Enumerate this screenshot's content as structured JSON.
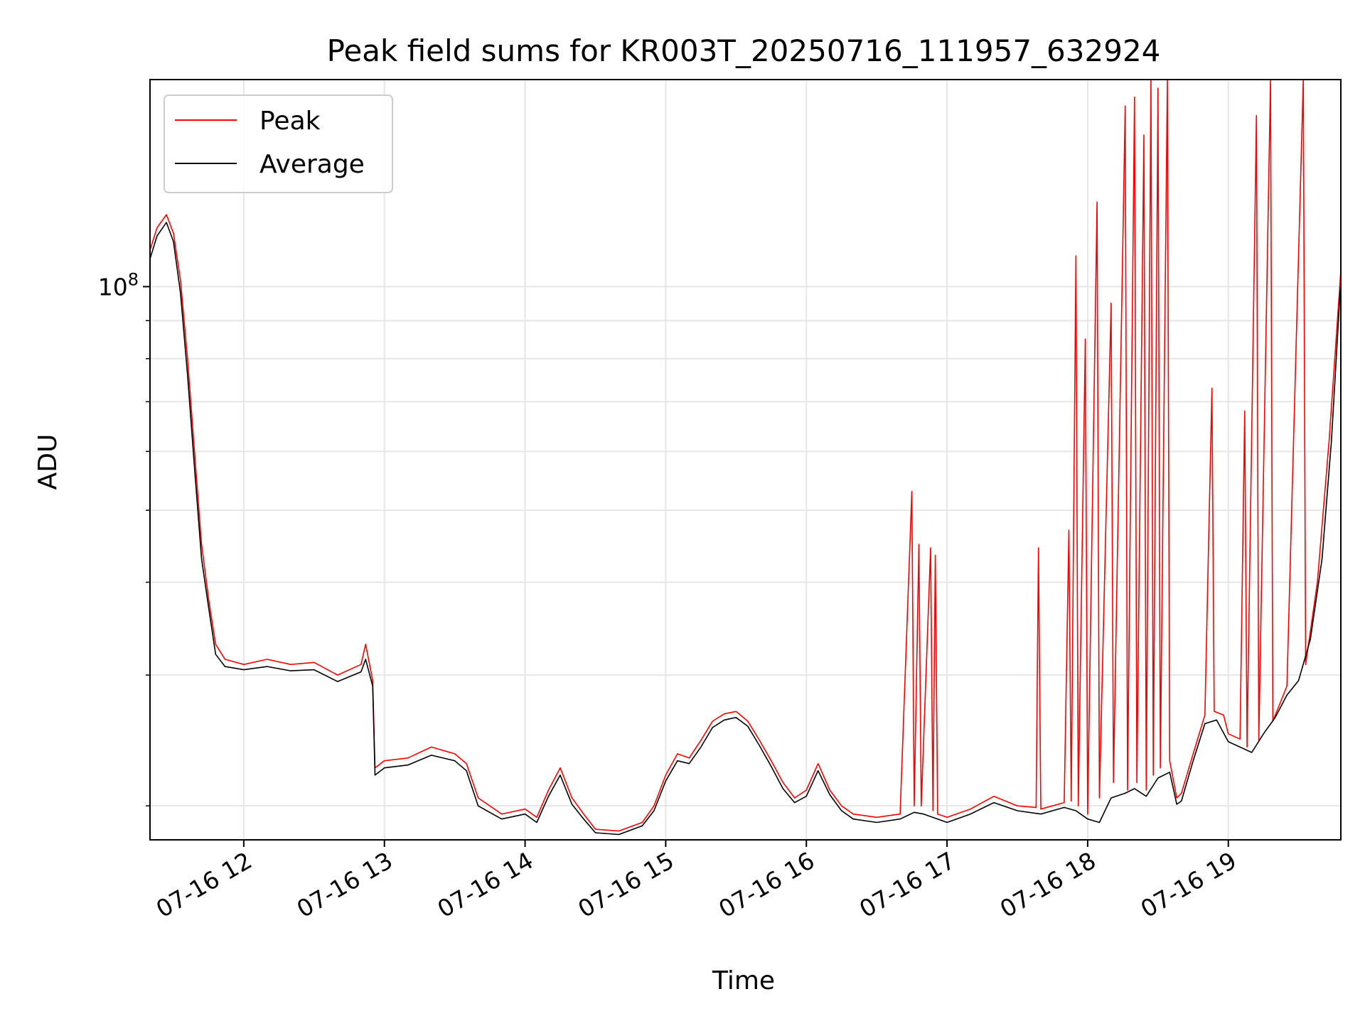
{
  "chart_data": {
    "type": "line",
    "title": "Peak field sums for KR003T_20250716_111957_632924",
    "xlabel": "Time",
    "ylabel": "ADU",
    "y_scale": "log",
    "y_major_tick_label_base": "10",
    "y_major_tick_label_exp": "8",
    "xlim": [
      "2025-07-16T11:20:00",
      "2025-07-16T19:48:00"
    ],
    "ylim": [
      18000000,
      190000000
    ],
    "y_major_ticks": [
      100000000
    ],
    "y_minor_ticks": [
      20000000,
      30000000,
      40000000,
      50000000,
      60000000,
      70000000,
      80000000,
      90000000,
      200000000
    ],
    "x_ticks": [
      {
        "t": "2025-07-16T12:00:00",
        "label": "07-16 12"
      },
      {
        "t": "2025-07-16T13:00:00",
        "label": "07-16 13"
      },
      {
        "t": "2025-07-16T14:00:00",
        "label": "07-16 14"
      },
      {
        "t": "2025-07-16T15:00:00",
        "label": "07-16 15"
      },
      {
        "t": "2025-07-16T16:00:00",
        "label": "07-16 16"
      },
      {
        "t": "2025-07-16T17:00:00",
        "label": "07-16 17"
      },
      {
        "t": "2025-07-16T18:00:00",
        "label": "07-16 18"
      },
      {
        "t": "2025-07-16T19:00:00",
        "label": "07-16 19"
      }
    ],
    "grid": true,
    "legend_position": "upper-left",
    "series": [
      {
        "name": "Peak",
        "color": "#ff0000",
        "points": [
          [
            "2025-07-16T11:20:00",
            112000000
          ],
          [
            "2025-07-16T11:23:00",
            120000000
          ],
          [
            "2025-07-16T11:27:00",
            125000000
          ],
          [
            "2025-07-16T11:30:00",
            118000000
          ],
          [
            "2025-07-16T11:33:00",
            102000000
          ],
          [
            "2025-07-16T11:36:00",
            80000000
          ],
          [
            "2025-07-16T11:39:00",
            60000000
          ],
          [
            "2025-07-16T11:42:00",
            45000000
          ],
          [
            "2025-07-16T11:45:00",
            38000000
          ],
          [
            "2025-07-16T11:48:00",
            33000000
          ],
          [
            "2025-07-16T11:52:00",
            31500000
          ],
          [
            "2025-07-16T12:00:00",
            31000000
          ],
          [
            "2025-07-16T12:10:00",
            31500000
          ],
          [
            "2025-07-16T12:20:00",
            31000000
          ],
          [
            "2025-07-16T12:30:00",
            31200000
          ],
          [
            "2025-07-16T12:40:00",
            30000000
          ],
          [
            "2025-07-16T12:50:00",
            31000000
          ],
          [
            "2025-07-16T12:52:00",
            33000000
          ],
          [
            "2025-07-16T12:55:00",
            29500000
          ],
          [
            "2025-07-16T12:56:00",
            22500000
          ],
          [
            "2025-07-16T13:00:00",
            23000000
          ],
          [
            "2025-07-16T13:10:00",
            23200000
          ],
          [
            "2025-07-16T13:20:00",
            24000000
          ],
          [
            "2025-07-16T13:30:00",
            23500000
          ],
          [
            "2025-07-16T13:35:00",
            22800000
          ],
          [
            "2025-07-16T13:40:00",
            20500000
          ],
          [
            "2025-07-16T13:50:00",
            19500000
          ],
          [
            "2025-07-16T14:00:00",
            19800000
          ],
          [
            "2025-07-16T14:05:00",
            19300000
          ],
          [
            "2025-07-16T14:10:00",
            21000000
          ],
          [
            "2025-07-16T14:15:00",
            22500000
          ],
          [
            "2025-07-16T14:20:00",
            20500000
          ],
          [
            "2025-07-16T14:25:00",
            19500000
          ],
          [
            "2025-07-16T14:30:00",
            18600000
          ],
          [
            "2025-07-16T14:40:00",
            18500000
          ],
          [
            "2025-07-16T14:50:00",
            19000000
          ],
          [
            "2025-07-16T14:55:00",
            20000000
          ],
          [
            "2025-07-16T15:00:00",
            22000000
          ],
          [
            "2025-07-16T15:05:00",
            23500000
          ],
          [
            "2025-07-16T15:10:00",
            23200000
          ],
          [
            "2025-07-16T15:15:00",
            24500000
          ],
          [
            "2025-07-16T15:20:00",
            26000000
          ],
          [
            "2025-07-16T15:25:00",
            26600000
          ],
          [
            "2025-07-16T15:30:00",
            26800000
          ],
          [
            "2025-07-16T15:35:00",
            26000000
          ],
          [
            "2025-07-16T15:40:00",
            24500000
          ],
          [
            "2025-07-16T15:45:00",
            23000000
          ],
          [
            "2025-07-16T15:50:00",
            21500000
          ],
          [
            "2025-07-16T15:55:00",
            20500000
          ],
          [
            "2025-07-16T16:00:00",
            21000000
          ],
          [
            "2025-07-16T16:05:00",
            22800000
          ],
          [
            "2025-07-16T16:10:00",
            21000000
          ],
          [
            "2025-07-16T16:15:00",
            20000000
          ],
          [
            "2025-07-16T16:20:00",
            19500000
          ],
          [
            "2025-07-16T16:30:00",
            19300000
          ],
          [
            "2025-07-16T16:40:00",
            19500000
          ],
          [
            "2025-07-16T16:45:00",
            53000000
          ],
          [
            "2025-07-16T16:46:00",
            20000000
          ],
          [
            "2025-07-16T16:48:00",
            45000000
          ],
          [
            "2025-07-16T16:49:00",
            20000000
          ],
          [
            "2025-07-16T16:53:00",
            44500000
          ],
          [
            "2025-07-16T16:54:00",
            19700000
          ],
          [
            "2025-07-16T16:55:00",
            43500000
          ],
          [
            "2025-07-16T16:56:00",
            19500000
          ],
          [
            "2025-07-16T17:00:00",
            19300000
          ],
          [
            "2025-07-16T17:10:00",
            19800000
          ],
          [
            "2025-07-16T17:20:00",
            20600000
          ],
          [
            "2025-07-16T17:30:00",
            20000000
          ],
          [
            "2025-07-16T17:38:00",
            19900000
          ],
          [
            "2025-07-16T17:39:00",
            44500000
          ],
          [
            "2025-07-16T17:40:00",
            19800000
          ],
          [
            "2025-07-16T17:50:00",
            20200000
          ],
          [
            "2025-07-16T17:52:00",
            47000000
          ],
          [
            "2025-07-16T17:53:00",
            20300000
          ],
          [
            "2025-07-16T17:55:00",
            110000000
          ],
          [
            "2025-07-16T17:56:00",
            20000000
          ],
          [
            "2025-07-16T17:59:00",
            85000000
          ],
          [
            "2025-07-16T18:00:00",
            19500000
          ],
          [
            "2025-07-16T18:04:00",
            130000000
          ],
          [
            "2025-07-16T18:05:00",
            20500000
          ],
          [
            "2025-07-16T18:10:00",
            95000000
          ],
          [
            "2025-07-16T18:11:00",
            21500000
          ],
          [
            "2025-07-16T18:16:00",
            175000000
          ],
          [
            "2025-07-16T18:17:00",
            21000000
          ],
          [
            "2025-07-16T18:20:00",
            180000000
          ],
          [
            "2025-07-16T18:21:00",
            21500000
          ],
          [
            "2025-07-16T18:24:00",
            160000000
          ],
          [
            "2025-07-16T18:25:00",
            21000000
          ],
          [
            "2025-07-16T18:27:00",
            190000000
          ],
          [
            "2025-07-16T18:28:00",
            22000000
          ],
          [
            "2025-07-16T18:30:00",
            185000000
          ],
          [
            "2025-07-16T18:31:00",
            22500000
          ],
          [
            "2025-07-16T18:34:00",
            190000000
          ],
          [
            "2025-07-16T18:35:00",
            23000000
          ],
          [
            "2025-07-16T18:38:00",
            20500000
          ],
          [
            "2025-07-16T18:40:00",
            20800000
          ],
          [
            "2025-07-16T18:45:00",
            23500000
          ],
          [
            "2025-07-16T18:50:00",
            26500000
          ],
          [
            "2025-07-16T18:53:00",
            73000000
          ],
          [
            "2025-07-16T18:54:00",
            26800000
          ],
          [
            "2025-07-16T18:58:00",
            26500000
          ],
          [
            "2025-07-16T19:00:00",
            25000000
          ],
          [
            "2025-07-16T19:05:00",
            24600000
          ],
          [
            "2025-07-16T19:07:00",
            68000000
          ],
          [
            "2025-07-16T19:08:00",
            24000000
          ],
          [
            "2025-07-16T19:12:00",
            170000000
          ],
          [
            "2025-07-16T19:13:00",
            24500000
          ],
          [
            "2025-07-16T19:18:00",
            190000000
          ],
          [
            "2025-07-16T19:19:00",
            26000000
          ],
          [
            "2025-07-16T19:25:00",
            29000000
          ],
          [
            "2025-07-16T19:32:00",
            190000000
          ],
          [
            "2025-07-16T19:33:00",
            31000000
          ],
          [
            "2025-07-16T19:38:00",
            40000000
          ],
          [
            "2025-07-16T19:43:00",
            62000000
          ],
          [
            "2025-07-16T19:48:00",
            105000000
          ]
        ]
      },
      {
        "name": "Average",
        "color": "#000000",
        "points": [
          [
            "2025-07-16T11:20:00",
            109000000
          ],
          [
            "2025-07-16T11:23:00",
            117000000
          ],
          [
            "2025-07-16T11:27:00",
            122000000
          ],
          [
            "2025-07-16T11:30:00",
            115000000
          ],
          [
            "2025-07-16T11:33:00",
            98000000
          ],
          [
            "2025-07-16T11:36:00",
            76000000
          ],
          [
            "2025-07-16T11:39:00",
            57000000
          ],
          [
            "2025-07-16T11:42:00",
            43000000
          ],
          [
            "2025-07-16T11:45:00",
            37000000
          ],
          [
            "2025-07-16T11:48:00",
            32000000
          ],
          [
            "2025-07-16T11:52:00",
            30800000
          ],
          [
            "2025-07-16T12:00:00",
            30500000
          ],
          [
            "2025-07-16T12:10:00",
            30800000
          ],
          [
            "2025-07-16T12:20:00",
            30400000
          ],
          [
            "2025-07-16T12:30:00",
            30500000
          ],
          [
            "2025-07-16T12:40:00",
            29400000
          ],
          [
            "2025-07-16T12:50:00",
            30300000
          ],
          [
            "2025-07-16T12:52:00",
            31500000
          ],
          [
            "2025-07-16T12:55:00",
            29000000
          ],
          [
            "2025-07-16T12:56:00",
            22000000
          ],
          [
            "2025-07-16T13:00:00",
            22500000
          ],
          [
            "2025-07-16T13:10:00",
            22700000
          ],
          [
            "2025-07-16T13:20:00",
            23400000
          ],
          [
            "2025-07-16T13:30:00",
            23000000
          ],
          [
            "2025-07-16T13:35:00",
            22300000
          ],
          [
            "2025-07-16T13:40:00",
            20000000
          ],
          [
            "2025-07-16T13:50:00",
            19200000
          ],
          [
            "2025-07-16T14:00:00",
            19500000
          ],
          [
            "2025-07-16T14:05:00",
            19000000
          ],
          [
            "2025-07-16T14:10:00",
            20600000
          ],
          [
            "2025-07-16T14:15:00",
            22000000
          ],
          [
            "2025-07-16T14:20:00",
            20100000
          ],
          [
            "2025-07-16T14:25:00",
            19200000
          ],
          [
            "2025-07-16T14:30:00",
            18400000
          ],
          [
            "2025-07-16T14:40:00",
            18300000
          ],
          [
            "2025-07-16T14:50:00",
            18800000
          ],
          [
            "2025-07-16T14:55:00",
            19700000
          ],
          [
            "2025-07-16T15:00:00",
            21600000
          ],
          [
            "2025-07-16T15:05:00",
            23000000
          ],
          [
            "2025-07-16T15:10:00",
            22800000
          ],
          [
            "2025-07-16T15:15:00",
            24000000
          ],
          [
            "2025-07-16T15:20:00",
            25500000
          ],
          [
            "2025-07-16T15:25:00",
            26100000
          ],
          [
            "2025-07-16T15:30:00",
            26300000
          ],
          [
            "2025-07-16T15:35:00",
            25600000
          ],
          [
            "2025-07-16T15:40:00",
            24100000
          ],
          [
            "2025-07-16T15:45:00",
            22600000
          ],
          [
            "2025-07-16T15:50:00",
            21100000
          ],
          [
            "2025-07-16T15:55:00",
            20200000
          ],
          [
            "2025-07-16T16:00:00",
            20600000
          ],
          [
            "2025-07-16T16:05:00",
            22300000
          ],
          [
            "2025-07-16T16:10:00",
            20700000
          ],
          [
            "2025-07-16T16:15:00",
            19700000
          ],
          [
            "2025-07-16T16:20:00",
            19200000
          ],
          [
            "2025-07-16T16:30:00",
            19000000
          ],
          [
            "2025-07-16T16:40:00",
            19200000
          ],
          [
            "2025-07-16T16:46:00",
            19600000
          ],
          [
            "2025-07-16T16:50:00",
            19500000
          ],
          [
            "2025-07-16T16:56:00",
            19200000
          ],
          [
            "2025-07-16T17:00:00",
            19000000
          ],
          [
            "2025-07-16T17:10:00",
            19500000
          ],
          [
            "2025-07-16T17:20:00",
            20200000
          ],
          [
            "2025-07-16T17:30:00",
            19700000
          ],
          [
            "2025-07-16T17:40:00",
            19500000
          ],
          [
            "2025-07-16T17:50:00",
            19900000
          ],
          [
            "2025-07-16T17:55:00",
            19700000
          ],
          [
            "2025-07-16T18:00:00",
            19200000
          ],
          [
            "2025-07-16T18:05:00",
            19000000
          ],
          [
            "2025-07-16T18:10:00",
            20500000
          ],
          [
            "2025-07-16T18:16:00",
            20800000
          ],
          [
            "2025-07-16T18:20:00",
            21100000
          ],
          [
            "2025-07-16T18:25:00",
            20600000
          ],
          [
            "2025-07-16T18:30:00",
            21800000
          ],
          [
            "2025-07-16T18:35:00",
            22200000
          ],
          [
            "2025-07-16T18:38:00",
            20100000
          ],
          [
            "2025-07-16T18:40:00",
            20300000
          ],
          [
            "2025-07-16T18:45:00",
            23000000
          ],
          [
            "2025-07-16T18:50:00",
            25800000
          ],
          [
            "2025-07-16T18:55:00",
            26100000
          ],
          [
            "2025-07-16T19:00:00",
            24400000
          ],
          [
            "2025-07-16T19:05:00",
            24000000
          ],
          [
            "2025-07-16T19:10:00",
            23600000
          ],
          [
            "2025-07-16T19:15:00",
            25000000
          ],
          [
            "2025-07-16T19:20:00",
            26300000
          ],
          [
            "2025-07-16T19:25:00",
            28200000
          ],
          [
            "2025-07-16T19:30:00",
            29500000
          ],
          [
            "2025-07-16T19:35:00",
            33500000
          ],
          [
            "2025-07-16T19:40:00",
            43000000
          ],
          [
            "2025-07-16T19:44:00",
            62000000
          ],
          [
            "2025-07-16T19:48:00",
            102000000
          ]
        ]
      }
    ]
  }
}
